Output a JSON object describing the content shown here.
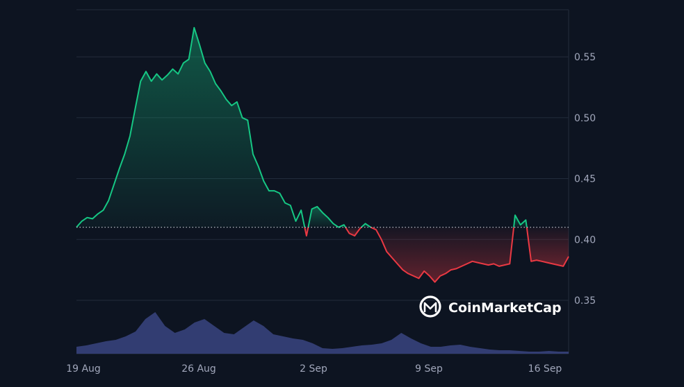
{
  "chart_data": {
    "type": "line",
    "ylim": [
      0.31,
      0.58
    ],
    "y_ticks": [
      "0.55",
      "0.50",
      "0.45",
      "0.40",
      "0.35"
    ],
    "x_ticks": [
      "19 Aug",
      "26 Aug",
      "2 Sep",
      "9 Sep",
      "16 Sep"
    ],
    "baseline": 0.41,
    "grid": true,
    "series": [
      {
        "values": [
          0.41,
          0.415,
          0.418,
          0.417,
          0.421,
          0.424,
          0.432,
          0.445,
          0.458,
          0.47,
          0.485,
          0.508,
          0.53,
          0.538,
          0.53,
          0.536,
          0.531,
          0.535,
          0.54,
          0.536,
          0.545,
          0.548,
          0.574,
          0.56,
          0.545,
          0.538,
          0.528,
          0.522,
          0.515,
          0.51,
          0.513,
          0.5,
          0.498,
          0.47,
          0.46,
          0.448,
          0.44,
          0.44,
          0.438,
          0.43,
          0.428,
          0.415,
          0.424,
          0.403,
          0.425,
          0.427,
          0.422,
          0.418,
          0.413,
          0.41,
          0.412,
          0.405,
          0.403,
          0.409,
          0.413,
          0.41,
          0.408,
          0.4,
          0.39,
          0.385,
          0.38,
          0.375,
          0.372,
          0.37,
          0.368,
          0.374,
          0.37,
          0.365,
          0.37,
          0.372,
          0.375,
          0.376,
          0.378,
          0.38,
          0.382,
          0.381,
          0.38,
          0.379,
          0.38,
          0.378,
          0.379,
          0.38,
          0.42,
          0.412,
          0.416,
          0.382,
          0.383,
          0.382,
          0.381,
          0.38,
          0.379,
          0.378,
          0.386
        ]
      }
    ],
    "volume": [
      0.01,
      0.012,
      0.015,
      0.018,
      0.02,
      0.025,
      0.032,
      0.05,
      0.06,
      0.04,
      0.03,
      0.035,
      0.045,
      0.05,
      0.04,
      0.03,
      0.028,
      0.038,
      0.048,
      0.04,
      0.028,
      0.025,
      0.022,
      0.02,
      0.015,
      0.008,
      0.007,
      0.008,
      0.01,
      0.012,
      0.013,
      0.015,
      0.02,
      0.03,
      0.022,
      0.015,
      0.01,
      0.01,
      0.012,
      0.013,
      0.01,
      0.008,
      0.006,
      0.005,
      0.005,
      0.004,
      0.003,
      0.003,
      0.004,
      0.003,
      0.003
    ],
    "colors": {
      "up": "#16c784",
      "down": "#ea3943",
      "volume": "#3a4480",
      "grid": "#222b3b",
      "text": "#a1a7bb"
    }
  },
  "watermark": {
    "brand": "CoinMarketCap"
  }
}
